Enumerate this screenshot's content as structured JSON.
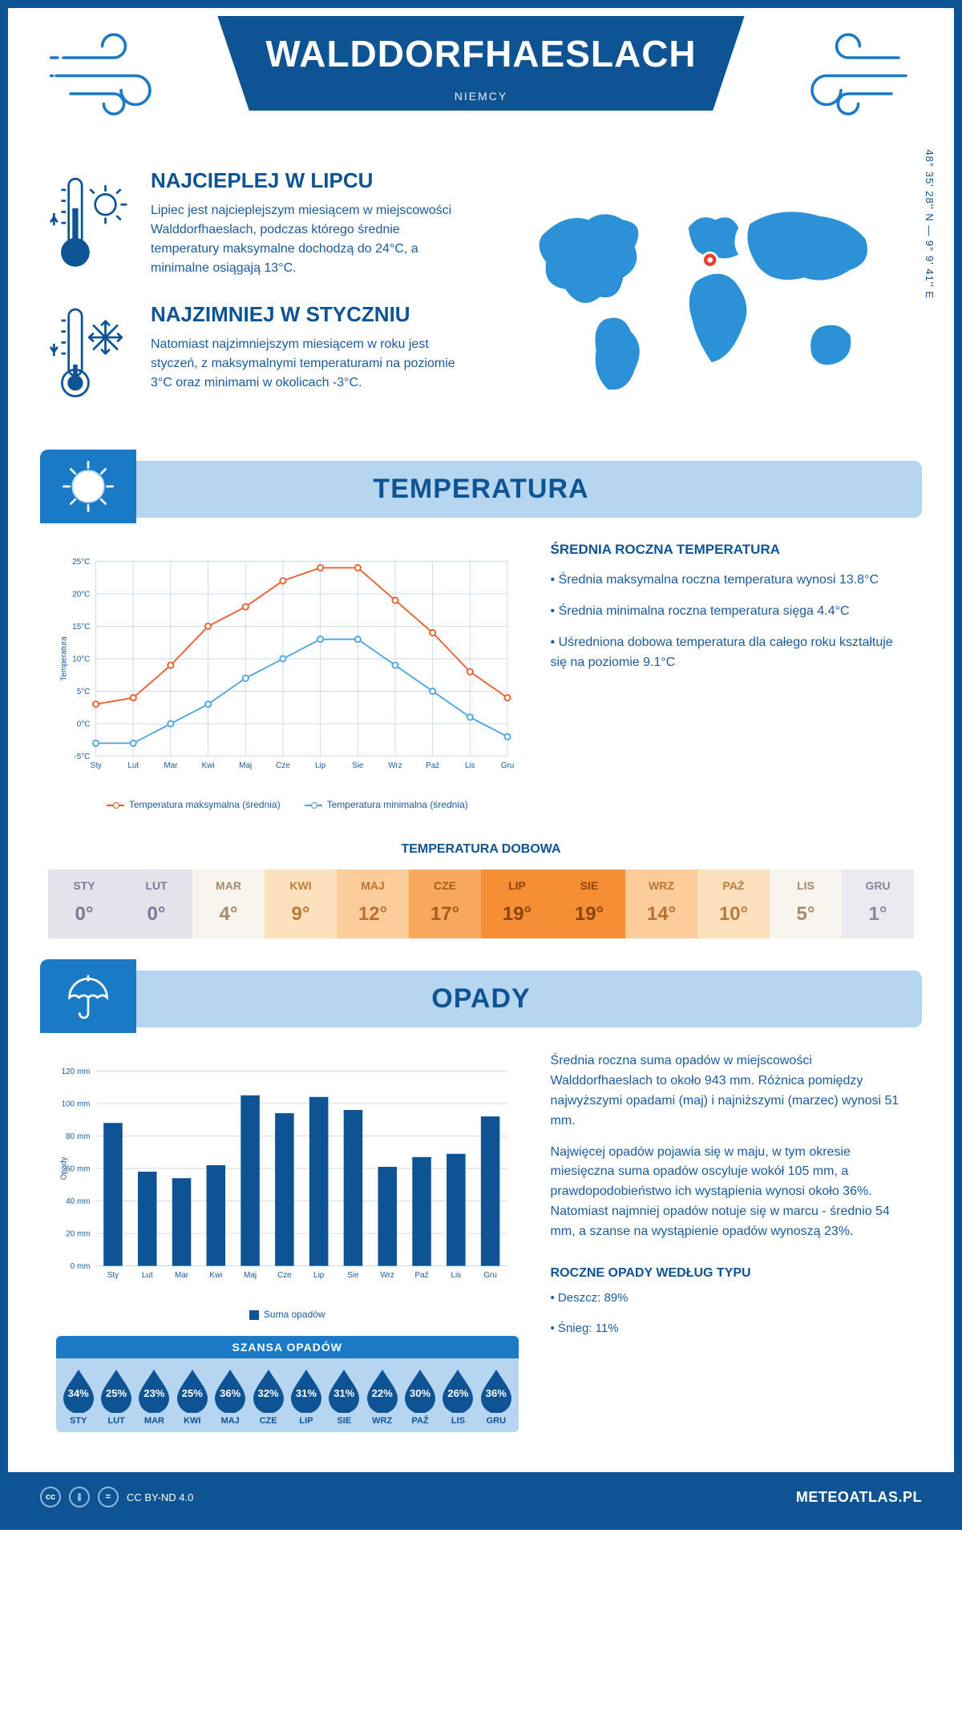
{
  "header": {
    "city": "WALDDORFHAESLACH",
    "country": "NIEMCY",
    "coords": "48° 35' 28'' N — 9° 9' 41'' E"
  },
  "intro": {
    "warm": {
      "title": "NAJCIEPLEJ W LIPCU",
      "text": "Lipiec jest najcieplejszym miesiącem w miejscowości Walddorfhaeslach, podczas którego średnie temperatury maksymalne dochodzą do 24°C, a minimalne osiągają 13°C."
    },
    "cold": {
      "title": "NAJZIMNIEJ W STYCZNIU",
      "text": "Natomiast najzimniejszym miesiącem w roku jest styczeń, z maksymalnymi temperaturami na poziomie 3°C oraz minimami w okolicach -3°C."
    }
  },
  "temperature_section": {
    "title": "TEMPERATURA",
    "summary_title": "ŚREDNIA ROCZNA TEMPERATURA",
    "bullets": [
      "• Średnia maksymalna roczna temperatura wynosi 13.8°C",
      "• Średnia minimalna roczna temperatura sięga 4.4°C",
      "• Uśredniona dobowa temperatura dla całego roku kształtuje się na poziomie 9.1°C"
    ],
    "chart": {
      "type": "line",
      "months": [
        "Sty",
        "Lut",
        "Mar",
        "Kwi",
        "Maj",
        "Cze",
        "Lip",
        "Sie",
        "Wrz",
        "Paź",
        "Lis",
        "Gru"
      ],
      "ylabel": "Temperatura",
      "ylim": [
        -5,
        25
      ],
      "ytick_step": 5,
      "ytick_labels": [
        "-5°C",
        "0°C",
        "5°C",
        "10°C",
        "15°C",
        "20°C",
        "25°C"
      ],
      "series": [
        {
          "name": "Temperatura maksymalna (średnia)",
          "color": "#eb5a28",
          "values": [
            3,
            4,
            9,
            15,
            18,
            22,
            24,
            24,
            19,
            14,
            8,
            4
          ]
        },
        {
          "name": "Temperatura minimalna (średnia)",
          "color": "#4aa3e0",
          "values": [
            -3,
            -3,
            0,
            3,
            7,
            10,
            13,
            13,
            9,
            5,
            1,
            -2
          ]
        }
      ],
      "grid_color": "#c7d9ea",
      "background_color": "#ffffff"
    },
    "daily_title": "TEMPERATURA DOBOWA",
    "daily": {
      "months": [
        "STY",
        "LUT",
        "MAR",
        "KWI",
        "MAJ",
        "CZE",
        "LIP",
        "SIE",
        "WRZ",
        "PAŹ",
        "LIS",
        "GRU"
      ],
      "values": [
        "0°",
        "0°",
        "4°",
        "9°",
        "12°",
        "17°",
        "19°",
        "19°",
        "14°",
        "10°",
        "5°",
        "1°"
      ],
      "bg_colors": [
        "#e5e2ec",
        "#e5e2ec",
        "#f8f4ee",
        "#fde0bd",
        "#fccd9a",
        "#f9a95e",
        "#f58e34",
        "#f58e34",
        "#fccd9a",
        "#fde0bd",
        "#f8f4ee",
        "#eceaf0"
      ],
      "text_colors": [
        "#7e7998",
        "#7e7998",
        "#a58a6d",
        "#b97d3a",
        "#b97234",
        "#a55d1e",
        "#8a4510",
        "#8a4510",
        "#b97234",
        "#b97d3a",
        "#a58a6d",
        "#8a86a0"
      ]
    }
  },
  "precipitation_section": {
    "title": "OPADY",
    "text1": "Średnia roczna suma opadów w miejscowości Walddorfhaeslach to około 943 mm. Różnica pomiędzy najwyższymi opadami (maj) i najniższymi (marzec) wynosi 51 mm.",
    "text2": "Najwięcej opadów pojawia się w maju, w tym okresie miesięczna suma opadów oscyluje wokół 105 mm, a prawdopodobieństwo ich wystąpienia wynosi około 36%. Natomiast najmniej opadów notuje się w marcu - średnio 54 mm, a szanse na wystąpienie opadów wynoszą 23%.",
    "chart": {
      "type": "bar",
      "months": [
        "Sty",
        "Lut",
        "Mar",
        "Kwi",
        "Maj",
        "Cze",
        "Lip",
        "Sie",
        "Wrz",
        "Paź",
        "Lis",
        "Gru"
      ],
      "ylabel": "Opady",
      "ylim": [
        0,
        120
      ],
      "ytick_step": 20,
      "ytick_labels": [
        "0 mm",
        "20 mm",
        "40 mm",
        "60 mm",
        "80 mm",
        "100 mm",
        "120 mm"
      ],
      "values": [
        88,
        58,
        54,
        62,
        105,
        94,
        104,
        96,
        61,
        67,
        69,
        92
      ],
      "bar_color": "#0e5394",
      "grid_color": "#c7d9ea",
      "legend_label": "Suma opadów"
    },
    "chance_title": "SZANSA OPADÓW",
    "chance": {
      "months": [
        "STY",
        "LUT",
        "MAR",
        "KWI",
        "MAJ",
        "CZE",
        "LIP",
        "SIE",
        "WRZ",
        "PAŹ",
        "LIS",
        "GRU"
      ],
      "values": [
        "34%",
        "25%",
        "23%",
        "25%",
        "36%",
        "32%",
        "31%",
        "31%",
        "22%",
        "30%",
        "26%",
        "36%"
      ],
      "drop_color": "#0e5394"
    },
    "yearly_type_title": "ROCZNE OPADY WEDŁUG TYPU",
    "yearly_type": [
      "• Deszcz: 89%",
      "• Śnieg: 11%"
    ]
  },
  "footer": {
    "license": "CC BY-ND 4.0",
    "brand": "METEOATLAS.PL"
  }
}
